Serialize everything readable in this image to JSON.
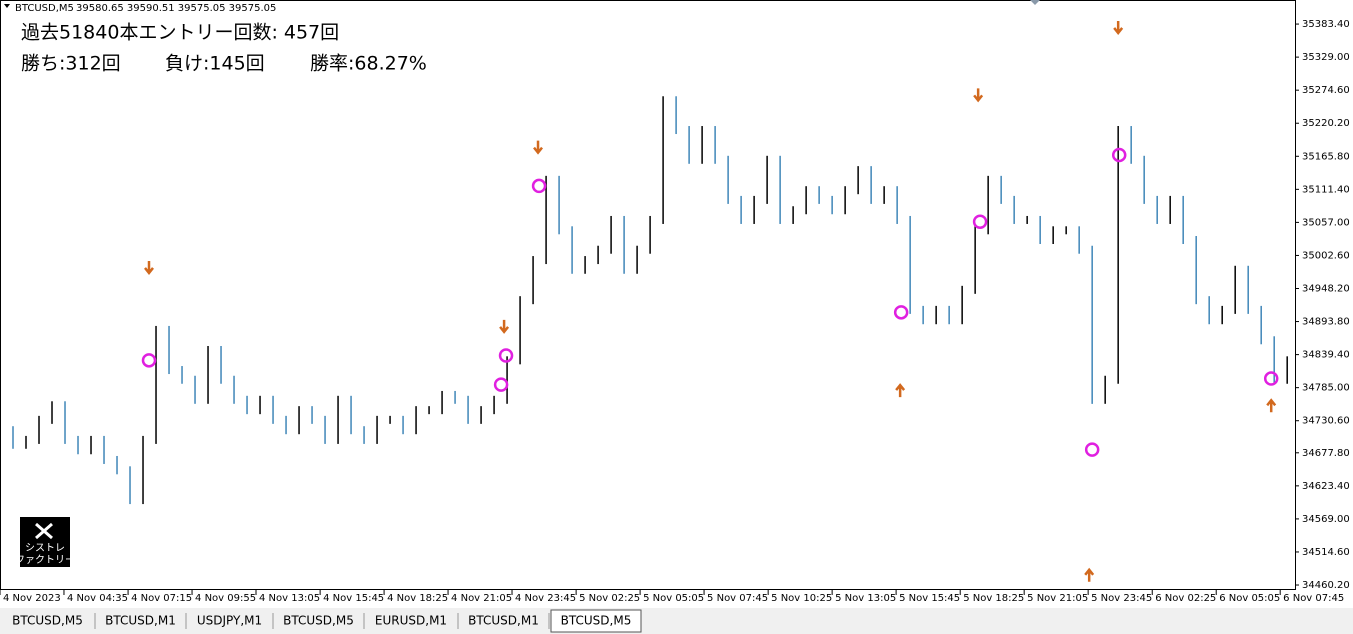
{
  "header": {
    "symbol": "BTCUSD,M5",
    "prices": "39580.65 39590.51 39575.05 39575.05"
  },
  "overlay": {
    "line1": "過去51840本エントリー回数: 457回",
    "wins": "勝ち:312回",
    "losses": "負け:145回",
    "rate": "勝率:68.27%"
  },
  "logo": {
    "line1": "シストレ",
    "line2": "ファクトリー"
  },
  "tabs": [
    "BTCUSD,M5",
    "BTCUSD,M1",
    "USDJPY,M1",
    "BTCUSD,M5",
    "EURUSD,M1",
    "BTCUSD,M1",
    "BTCUSD,M5"
  ],
  "chart_data": {
    "type": "bars",
    "up_color": "#000000",
    "down_color": "#3f86b8",
    "values": [
      34715,
      34691,
      34699,
      34732,
      34756,
      34699,
      34682,
      34699,
      34666,
      34649,
      34600,
      34699,
      34880,
      34814,
      34798,
      34765,
      34847,
      34798,
      34765,
      34748,
      34765,
      34732,
      34715,
      34748,
      34732,
      34699,
      34765,
      34715,
      34699,
      34732,
      34732,
      34715,
      34748,
      34748,
      34773,
      34765,
      34732,
      34748,
      34765,
      34830,
      34929,
      34995,
      35127,
      35044,
      34979,
      34995,
      35012,
      35061,
      34979,
      35012,
      35061,
      35258,
      35209,
      35160,
      35209,
      35160,
      35094,
      35061,
      35094,
      35160,
      35061,
      35077,
      35110,
      35094,
      35077,
      35110,
      35143,
      35094,
      35110,
      35061,
      34913,
      34896,
      34913,
      34896,
      34946,
      35044,
      35127,
      35094,
      35061,
      35061,
      35028,
      35044,
      35044,
      35012,
      34765,
      34798,
      35209,
      35160,
      35094,
      35061,
      35094,
      35028,
      34929,
      34896,
      34913,
      34979,
      34913,
      34863,
      34798,
      34830
    ],
    "entries": {
      "x": [
        11.46,
        38.54,
        38.92,
        41.46,
        69.31,
        75.38,
        84,
        86.08,
        97.77
      ],
      "values": [
        34830,
        34790,
        34838,
        35117,
        34909,
        35058,
        34683,
        35168,
        34800
      ]
    },
    "sell_arrows": {
      "x": [
        11.46,
        38.77,
        41.38,
        75.23,
        86
      ],
      "values": [
        34982,
        34885,
        35180,
        35266,
        35377
      ]
    },
    "buy_arrows": {
      "x": [
        69.23,
        83.77,
        97.77
      ],
      "values": [
        34781,
        34477,
        34756
      ]
    },
    "xlim": [
      0,
      99.6
    ],
    "ylim": [
      34452,
      35423
    ],
    "yticks": [
      {
        "value": 35383.4,
        "label": "35383.40"
      },
      {
        "value": 35329,
        "label": "35329.00"
      },
      {
        "value": 35274.6,
        "label": "35274.60"
      },
      {
        "value": 35220.2,
        "label": "35220.20"
      },
      {
        "value": 35165.8,
        "label": "35165.80"
      },
      {
        "value": 35111.4,
        "label": "35111.40"
      },
      {
        "value": 35057,
        "label": "35057.00"
      },
      {
        "value": 35002.6,
        "label": "35002.60"
      },
      {
        "value": 34948.2,
        "label": "34948.20"
      },
      {
        "value": 34893.8,
        "label": "34893.80"
      },
      {
        "value": 34839.4,
        "label": "34839.40"
      },
      {
        "value": 34785,
        "label": "34785.00"
      },
      {
        "value": 34730.6,
        "label": "34730.60"
      },
      {
        "value": 34677.8,
        "label": "34677.80"
      },
      {
        "value": 34623.4,
        "label": "34623.40"
      },
      {
        "value": 34569,
        "label": "34569.00"
      },
      {
        "value": 34514.6,
        "label": "34514.60"
      },
      {
        "value": 34460.2,
        "label": "34460.20"
      }
    ],
    "xticks": [
      {
        "value": 0,
        "label": "4 Nov 2023"
      },
      {
        "value": 4.92,
        "label": "4 Nov 04:35"
      },
      {
        "value": 9.85,
        "label": "4 Nov 07:15"
      },
      {
        "value": 14.77,
        "label": "4 Nov 09:55"
      },
      {
        "value": 19.69,
        "label": "4 Nov 13:05"
      },
      {
        "value": 24.62,
        "label": "4 Nov 15:45"
      },
      {
        "value": 29.54,
        "label": "4 Nov 18:25"
      },
      {
        "value": 34.46,
        "label": "4 Nov 21:05"
      },
      {
        "value": 39.38,
        "label": "4 Nov 23:45"
      },
      {
        "value": 44.31,
        "label": "5 Nov 02:25"
      },
      {
        "value": 49.23,
        "label": "5 Nov 05:05"
      },
      {
        "value": 54.15,
        "label": "5 Nov 07:45"
      },
      {
        "value": 59.08,
        "label": "5 Nov 10:25"
      },
      {
        "value": 64,
        "label": "5 Nov 13:05"
      },
      {
        "value": 68.92,
        "label": "5 Nov 15:45"
      },
      {
        "value": 73.85,
        "label": "5 Nov 18:25"
      },
      {
        "value": 78.77,
        "label": "5 Nov 21:05"
      },
      {
        "value": 83.69,
        "label": "5 Nov 23:45"
      },
      {
        "value": 88.62,
        "label": "6 Nov 02:25"
      },
      {
        "value": 93.54,
        "label": "6 Nov 05:05"
      },
      {
        "value": 98.46,
        "label": "6 Nov 07:45"
      }
    ]
  }
}
